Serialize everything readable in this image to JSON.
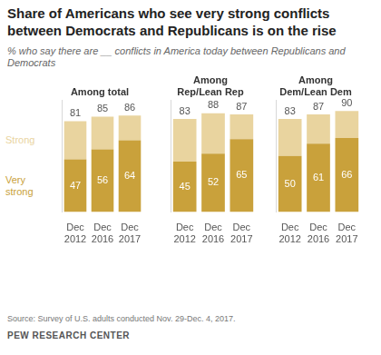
{
  "title": "Share of Americans who see very strong conflicts between Democrats and Republicans is on the rise",
  "subtitle": "% who say there are __ conflicts in America today between Republicans and Democrats",
  "source": "Source: Survey of U.S. adults conducted Nov. 29-Dec. 4, 2017.",
  "credit": "PEW RESEARCH CENTER",
  "chart_data": [
    {
      "type": "bar",
      "title": "Among total",
      "stacked": true,
      "grid": false,
      "tick_labels": "x",
      "categories": [
        "Dec 2012",
        "Dec 2016",
        "Dec 2017"
      ],
      "ylim": [
        0,
        100
      ],
      "series": [
        {
          "name": "Very strong",
          "color": "#c9a13b",
          "values": [
            47,
            56,
            64
          ],
          "data_labels": true
        },
        {
          "name": "Strong",
          "color": "#e9d49f",
          "values": [
            34,
            29,
            22
          ]
        }
      ],
      "totals": [
        81,
        85,
        86
      ]
    },
    {
      "type": "bar",
      "title": "Among Rep/Lean Rep",
      "stacked": true,
      "grid": false,
      "tick_labels": "x",
      "categories": [
        "Dec 2012",
        "Dec 2016",
        "Dec 2017"
      ],
      "ylim": [
        0,
        100
      ],
      "series": [
        {
          "name": "Very strong",
          "color": "#c9a13b",
          "values": [
            45,
            52,
            65
          ],
          "data_labels": true
        },
        {
          "name": "Strong",
          "color": "#e9d49f",
          "values": [
            38,
            36,
            22
          ]
        }
      ],
      "totals": [
        83,
        88,
        87
      ]
    },
    {
      "type": "bar",
      "title": "Among Dem/Lean Dem",
      "stacked": true,
      "grid": false,
      "tick_labels": "x",
      "categories": [
        "Dec 2012",
        "Dec 2016",
        "Dec 2017"
      ],
      "ylim": [
        0,
        100
      ],
      "series": [
        {
          "name": "Very strong",
          "color": "#c9a13b",
          "values": [
            50,
            61,
            66
          ],
          "data_labels": true
        },
        {
          "name": "Strong",
          "color": "#e9d49f",
          "values": [
            33,
            26,
            24
          ]
        }
      ],
      "totals": [
        83,
        87,
        90
      ]
    }
  ]
}
